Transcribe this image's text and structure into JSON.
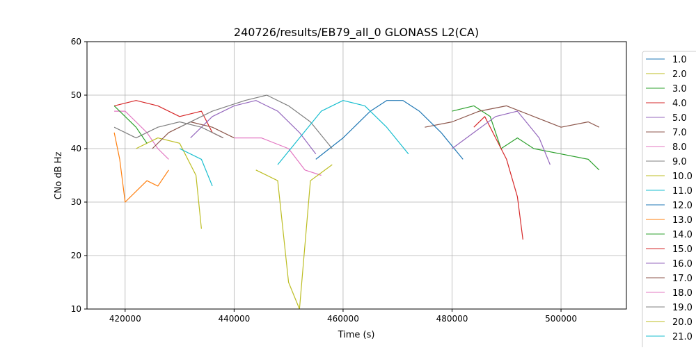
{
  "chart_data": {
    "type": "line",
    "title": "240726/results/EB79_all_0 GLONASS L2(CA)",
    "xlabel": "Time (s)",
    "ylabel": "CNo dB Hz",
    "xlim": [
      413000,
      512000
    ],
    "ylim": [
      10,
      60
    ],
    "xticks": [
      420000,
      440000,
      460000,
      480000,
      500000
    ],
    "yticks": [
      10,
      20,
      30,
      40,
      50,
      60
    ],
    "grid": true,
    "legend_placement": "right-outside",
    "series": [
      {
        "name": "1.0",
        "color": "#1f77b4",
        "points": []
      },
      {
        "name": "2.0",
        "color": "#bcbd22",
        "points": []
      },
      {
        "name": "3.0",
        "color": "#2ca02c",
        "points": [
          [
            480000,
            47
          ],
          [
            484000,
            48
          ],
          [
            487000,
            46
          ],
          [
            489000,
            40
          ],
          [
            492000,
            42
          ],
          [
            495000,
            40
          ],
          [
            500000,
            39
          ],
          [
            505000,
            38
          ],
          [
            507000,
            36
          ]
        ]
      },
      {
        "name": "4.0",
        "color": "#d62728",
        "points": [
          [
            418000,
            48
          ],
          [
            422000,
            49
          ],
          [
            426000,
            48
          ],
          [
            430000,
            46
          ],
          [
            434000,
            47
          ],
          [
            436000,
            43
          ],
          [
            438000,
            42
          ]
        ]
      },
      {
        "name": "5.0",
        "color": "#9467bd",
        "points": [
          [
            432000,
            42
          ],
          [
            436000,
            46
          ],
          [
            440000,
            48
          ],
          [
            444000,
            49
          ],
          [
            448000,
            47
          ],
          [
            452000,
            43
          ],
          [
            455000,
            39
          ]
        ]
      },
      {
        "name": "7.0",
        "color": "#8c564b",
        "points": [
          [
            475000,
            44
          ],
          [
            480000,
            45
          ],
          [
            485000,
            47
          ],
          [
            490000,
            48
          ],
          [
            495000,
            46
          ],
          [
            500000,
            44
          ],
          [
            505000,
            45
          ],
          [
            507000,
            44
          ]
        ]
      },
      {
        "name": "8.0",
        "color": "#e377c2",
        "points": [
          [
            418000,
            47
          ],
          [
            420000,
            47
          ],
          [
            422000,
            45
          ],
          [
            424000,
            43
          ],
          [
            426000,
            40
          ],
          [
            428000,
            38
          ]
        ]
      },
      {
        "name": "9.0",
        "color": "#7f7f7f",
        "points": [
          [
            418000,
            44
          ],
          [
            422000,
            42
          ],
          [
            426000,
            44
          ],
          [
            430000,
            45
          ],
          [
            434000,
            44
          ],
          [
            438000,
            42
          ]
        ]
      },
      {
        "name": "10.0",
        "color": "#bcbd22",
        "points": [
          [
            422000,
            40
          ],
          [
            426000,
            42
          ],
          [
            430000,
            41
          ],
          [
            433000,
            35
          ],
          [
            434000,
            25
          ]
        ]
      },
      {
        "name": "11.0",
        "color": "#17becf",
        "points": [
          [
            430000,
            40
          ],
          [
            434000,
            38
          ],
          [
            436000,
            33
          ]
        ]
      },
      {
        "name": "12.0",
        "color": "#1f77b4",
        "points": [
          [
            455000,
            38
          ],
          [
            460000,
            42
          ],
          [
            465000,
            47
          ],
          [
            468000,
            49
          ],
          [
            471000,
            49
          ],
          [
            474000,
            47
          ],
          [
            478000,
            43
          ],
          [
            482000,
            38
          ]
        ]
      },
      {
        "name": "13.0",
        "color": "#ff7f0e",
        "points": [
          [
            418000,
            43
          ],
          [
            419000,
            38
          ],
          [
            420000,
            30
          ],
          [
            422000,
            32
          ],
          [
            424000,
            34
          ],
          [
            426000,
            33
          ],
          [
            428000,
            36
          ]
        ]
      },
      {
        "name": "14.0",
        "color": "#2ca02c",
        "points": [
          [
            418000,
            48
          ],
          [
            420000,
            46
          ],
          [
            422000,
            44
          ],
          [
            424000,
            41
          ]
        ]
      },
      {
        "name": "15.0",
        "color": "#d62728",
        "points": [
          [
            484000,
            44
          ],
          [
            486000,
            46
          ],
          [
            488000,
            42
          ],
          [
            490000,
            38
          ],
          [
            492000,
            31
          ],
          [
            493000,
            23
          ]
        ]
      },
      {
        "name": "16.0",
        "color": "#9467bd",
        "points": [
          [
            480000,
            40
          ],
          [
            484000,
            43
          ],
          [
            488000,
            46
          ],
          [
            492000,
            47
          ],
          [
            496000,
            42
          ],
          [
            498000,
            37
          ]
        ]
      },
      {
        "name": "17.0",
        "color": "#8c564b",
        "points": [
          [
            425000,
            40
          ],
          [
            428000,
            43
          ],
          [
            432000,
            45
          ],
          [
            436000,
            44
          ],
          [
            440000,
            42
          ]
        ]
      },
      {
        "name": "18.0",
        "color": "#e377c2",
        "points": [
          [
            440000,
            42
          ],
          [
            445000,
            42
          ],
          [
            450000,
            40
          ],
          [
            453000,
            36
          ],
          [
            456000,
            35
          ]
        ]
      },
      {
        "name": "19.0",
        "color": "#7f7f7f",
        "points": [
          [
            430000,
            44
          ],
          [
            436000,
            47
          ],
          [
            442000,
            49
          ],
          [
            446000,
            50
          ],
          [
            450000,
            48
          ],
          [
            454000,
            45
          ],
          [
            458000,
            40
          ]
        ]
      },
      {
        "name": "20.0",
        "color": "#bcbd22",
        "points": [
          [
            444000,
            36
          ],
          [
            448000,
            34
          ],
          [
            450000,
            15
          ],
          [
            452000,
            10
          ],
          [
            454000,
            34
          ],
          [
            458000,
            37
          ]
        ]
      },
      {
        "name": "21.0",
        "color": "#17becf",
        "points": [
          [
            448000,
            37
          ],
          [
            452000,
            42
          ],
          [
            456000,
            47
          ],
          [
            460000,
            49
          ],
          [
            464000,
            48
          ],
          [
            468000,
            44
          ],
          [
            472000,
            39
          ]
        ]
      }
    ]
  }
}
